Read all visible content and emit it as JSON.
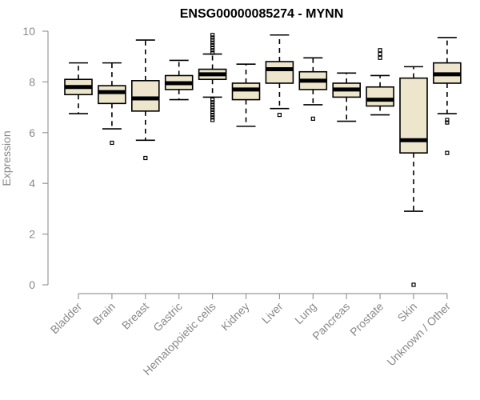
{
  "chart_data": {
    "type": "boxplot",
    "title": "ENSG00000085274 - MYNN",
    "ylabel": "Expression",
    "xlabel": "",
    "ylim": [
      0,
      10
    ],
    "yticks": [
      0,
      2,
      4,
      6,
      8,
      10
    ],
    "box_fill": "#ede6cc",
    "categories": [
      "Bladder",
      "Brain",
      "Breast",
      "Gastric",
      "Hematopoietic cells",
      "Kidney",
      "Liver",
      "Lung",
      "Pancreas",
      "Prostate",
      "Skin",
      "Unknown / Other"
    ],
    "boxes": [
      {
        "whisker_low": 6.75,
        "q1": 7.5,
        "median": 7.8,
        "q3": 8.1,
        "whisker_high": 8.75,
        "outliers": []
      },
      {
        "whisker_low": 6.15,
        "q1": 7.15,
        "median": 7.6,
        "q3": 7.85,
        "whisker_high": 8.75,
        "outliers": [
          5.6
        ]
      },
      {
        "whisker_low": 5.7,
        "q1": 6.85,
        "median": 7.35,
        "q3": 8.05,
        "whisker_high": 9.65,
        "outliers": [
          5.0
        ]
      },
      {
        "whisker_low": 7.3,
        "q1": 7.7,
        "median": 7.95,
        "q3": 8.25,
        "whisker_high": 8.85,
        "outliers": []
      },
      {
        "whisker_low": 7.4,
        "q1": 8.1,
        "median": 8.3,
        "q3": 8.5,
        "whisker_high": 9.1,
        "outliers": [
          9.85,
          9.75,
          9.65,
          9.55,
          9.45,
          9.35,
          9.25,
          9.15,
          7.3,
          7.2,
          7.1,
          7.0,
          6.9,
          6.8,
          6.7,
          6.6,
          6.5
        ]
      },
      {
        "whisker_low": 6.25,
        "q1": 7.3,
        "median": 7.7,
        "q3": 7.95,
        "whisker_high": 8.7,
        "outliers": []
      },
      {
        "whisker_low": 6.95,
        "q1": 7.95,
        "median": 8.5,
        "q3": 8.8,
        "whisker_high": 9.85,
        "outliers": [
          6.7
        ]
      },
      {
        "whisker_low": 7.1,
        "q1": 7.7,
        "median": 8.05,
        "q3": 8.4,
        "whisker_high": 8.95,
        "outliers": [
          6.55
        ]
      },
      {
        "whisker_low": 6.45,
        "q1": 7.4,
        "median": 7.7,
        "q3": 7.95,
        "whisker_high": 8.35,
        "outliers": []
      },
      {
        "whisker_low": 6.7,
        "q1": 7.05,
        "median": 7.3,
        "q3": 7.8,
        "whisker_high": 8.25,
        "outliers": [
          9.25,
          9.1,
          8.95
        ]
      },
      {
        "whisker_low": 2.9,
        "q1": 5.2,
        "median": 5.7,
        "q3": 8.15,
        "whisker_high": 8.6,
        "outliers": [
          0.0
        ]
      },
      {
        "whisker_low": 6.75,
        "q1": 7.95,
        "median": 8.3,
        "q3": 8.75,
        "whisker_high": 9.75,
        "outliers": [
          6.5,
          6.4,
          5.2
        ]
      }
    ]
  }
}
